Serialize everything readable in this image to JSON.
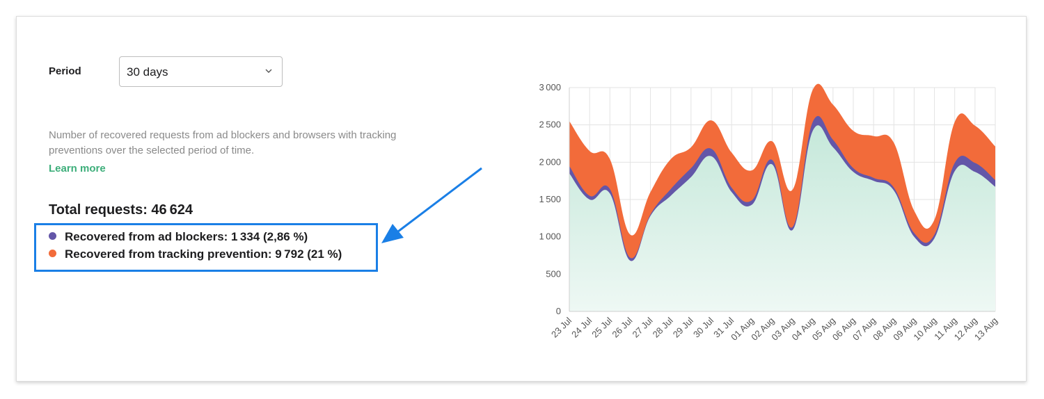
{
  "form": {
    "period_label": "Period",
    "period_value": "30 days"
  },
  "description": "Number of recovered requests from ad blockers and browsers with tracking preventions over the selected period of time.",
  "learn_more": "Learn more",
  "totals": {
    "total_label": "Total requests: 46 624",
    "ad_blockers_label": "Recovered from ad blockers: 1 334 (2,86 %)",
    "tracking_label": "Recovered from tracking prevention: 9 792 (21 %)"
  },
  "colors": {
    "base": "#d6efe6",
    "ad_blockers": "#6356a8",
    "tracking": "#f26b3a",
    "highlight": "#1a7fe6",
    "link": "#3dae7a"
  },
  "icons": {
    "select": "chevron-down-icon",
    "annotation": "arrow-icon"
  },
  "chart_data": {
    "type": "area",
    "stacked": true,
    "categories": [
      "23 Jul",
      "24 Jul",
      "25 Jul",
      "26 Jul",
      "27 Jul",
      "28 Jul",
      "29 Jul",
      "30 Jul",
      "31 Jul",
      "01 Aug",
      "02 Aug",
      "03 Aug",
      "04 Aug",
      "05 Aug",
      "06 Aug",
      "07 Aug",
      "08 Aug",
      "09 Aug",
      "10 Aug",
      "11 Aug",
      "12 Aug",
      "13 Aug"
    ],
    "series": [
      {
        "values": [
          1850,
          1500,
          1580,
          680,
          1280,
          1550,
          1800,
          2080,
          1600,
          1430,
          1970,
          1090,
          2420,
          2200,
          1870,
          1750,
          1620,
          1000,
          980,
          1880,
          1870,
          1670
        ]
      },
      {
        "values": [
          100,
          50,
          60,
          40,
          20,
          90,
          120,
          100,
          60,
          60,
          60,
          40,
          120,
          100,
          50,
          40,
          40,
          50,
          50,
          110,
          120,
          90
        ]
      },
      {
        "values": [
          600,
          600,
          400,
          310,
          300,
          400,
          280,
          380,
          470,
          400,
          250,
          500,
          430,
          470,
          500,
          560,
          600,
          300,
          200,
          550,
          500,
          450
        ]
      }
    ],
    "yticks": [
      0,
      500,
      1000,
      1500,
      2000,
      2500,
      3000
    ],
    "ylim": [
      0,
      3000
    ],
    "grid": true
  }
}
